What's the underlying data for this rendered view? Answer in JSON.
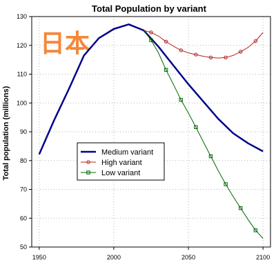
{
  "chart_data": {
    "type": "line",
    "title": "Total Population by variant",
    "xlabel": "",
    "ylabel": "Total population (millions)",
    "xlim": [
      1945,
      2105
    ],
    "ylim": [
      50,
      130
    ],
    "xticks": [
      1950,
      2000,
      2050,
      2100
    ],
    "yticks": [
      50,
      60,
      70,
      80,
      90,
      100,
      110,
      120,
      130
    ],
    "grid": true,
    "legend_position": "center-left",
    "annotation": {
      "text": "日本",
      "color": "#f5873a"
    },
    "series": [
      {
        "name": "Medium variant",
        "color": "#00008b",
        "marker": "none",
        "x": [
          1950,
          1960,
          1970,
          1980,
          1990,
          2000,
          2010,
          2020,
          2030,
          2040,
          2050,
          2060,
          2070,
          2080,
          2090,
          2100
        ],
        "y": [
          82.2,
          94,
          105,
          116.5,
          122.5,
          125.7,
          127.3,
          125.2,
          119.5,
          113,
          106.5,
          100.5,
          94.5,
          89.5,
          86,
          83.2
        ]
      },
      {
        "name": "High variant",
        "color": "#b22222",
        "marker": "circle",
        "x": [
          2020,
          2025,
          2030,
          2035,
          2040,
          2045,
          2050,
          2055,
          2060,
          2065,
          2070,
          2075,
          2080,
          2085,
          2090,
          2095,
          2100
        ],
        "y": [
          125.2,
          124.5,
          123.2,
          121.3,
          119.7,
          118.3,
          117.4,
          116.8,
          116.2,
          115.8,
          115.6,
          115.8,
          116.5,
          117.8,
          119.3,
          121.5,
          124.5
        ]
      },
      {
        "name": "Low variant",
        "color": "#006400",
        "marker": "square",
        "x": [
          2020,
          2025,
          2030,
          2035,
          2040,
          2045,
          2050,
          2055,
          2060,
          2065,
          2070,
          2075,
          2080,
          2085,
          2090,
          2095,
          2100
        ],
        "y": [
          125.2,
          121.8,
          117.3,
          111.5,
          106.4,
          101.1,
          96.5,
          91.6,
          86.5,
          81.5,
          76.5,
          71.8,
          67.5,
          63.5,
          59.5,
          55.8,
          53
        ]
      }
    ]
  }
}
